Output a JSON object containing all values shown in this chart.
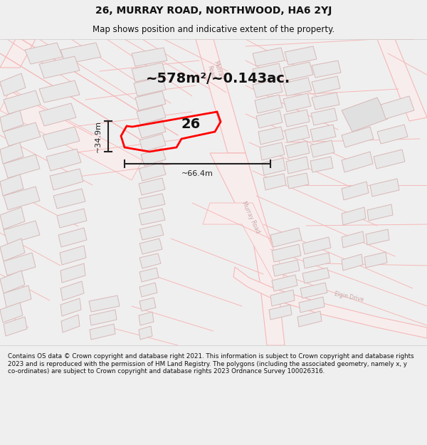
{
  "title_line1": "26, MURRAY ROAD, NORTHWOOD, HA6 2YJ",
  "title_line2": "Map shows position and indicative extent of the property.",
  "footer_text": "Contains OS data © Crown copyright and database right 2021. This information is subject to Crown copyright and database rights 2023 and is reproduced with the permission of HM Land Registry. The polygons (including the associated geometry, namely x, y co-ordinates) are subject to Crown copyright and database rights 2023 Ordnance Survey 100026316.",
  "area_label": "~578m²/~0.143ac.",
  "number_label": "26",
  "dim_height": "~34.9m",
  "dim_width": "~66.4m",
  "bg_color": "#f5f5f5",
  "map_bg": "#ffffff",
  "road_line_color": "#f5b8b8",
  "road_fill_color": "#f8e8e8",
  "building_color": "#e8e8e8",
  "building_outline": "#d8b8b8",
  "highlight_color": "#ff0000",
  "dim_color": "#222222",
  "text_color": "#111111",
  "road_label_color": "#c8a8a8",
  "title_bg": "#f0efef",
  "footer_bg": "#f0efef"
}
